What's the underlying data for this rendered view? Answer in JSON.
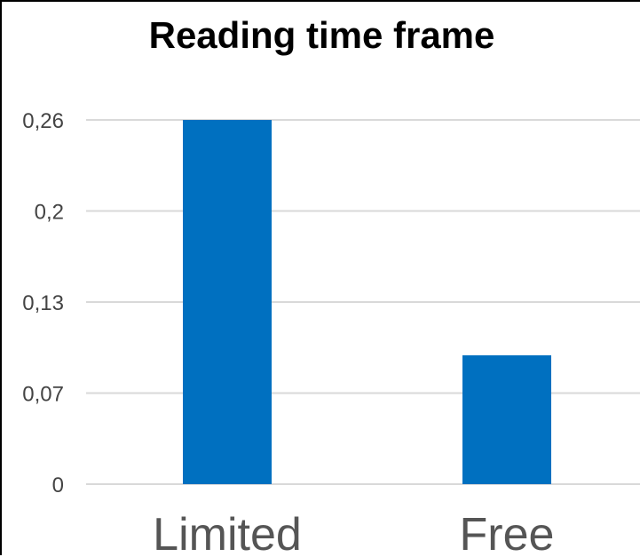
{
  "chart_data": {
    "type": "bar",
    "title": "Reading time frame",
    "categories": [
      "Limited",
      "Free"
    ],
    "values": [
      0.26,
      0.092
    ],
    "ylim": [
      0,
      0.26
    ],
    "yticks": [
      0,
      0.065,
      0.13,
      0.195,
      0.26
    ],
    "ytick_labels": [
      "0",
      "0,07",
      "0,13",
      "0,2",
      "0,26"
    ],
    "grid": true,
    "bar_color": "#0070c0",
    "xlabel": "",
    "ylabel": ""
  }
}
